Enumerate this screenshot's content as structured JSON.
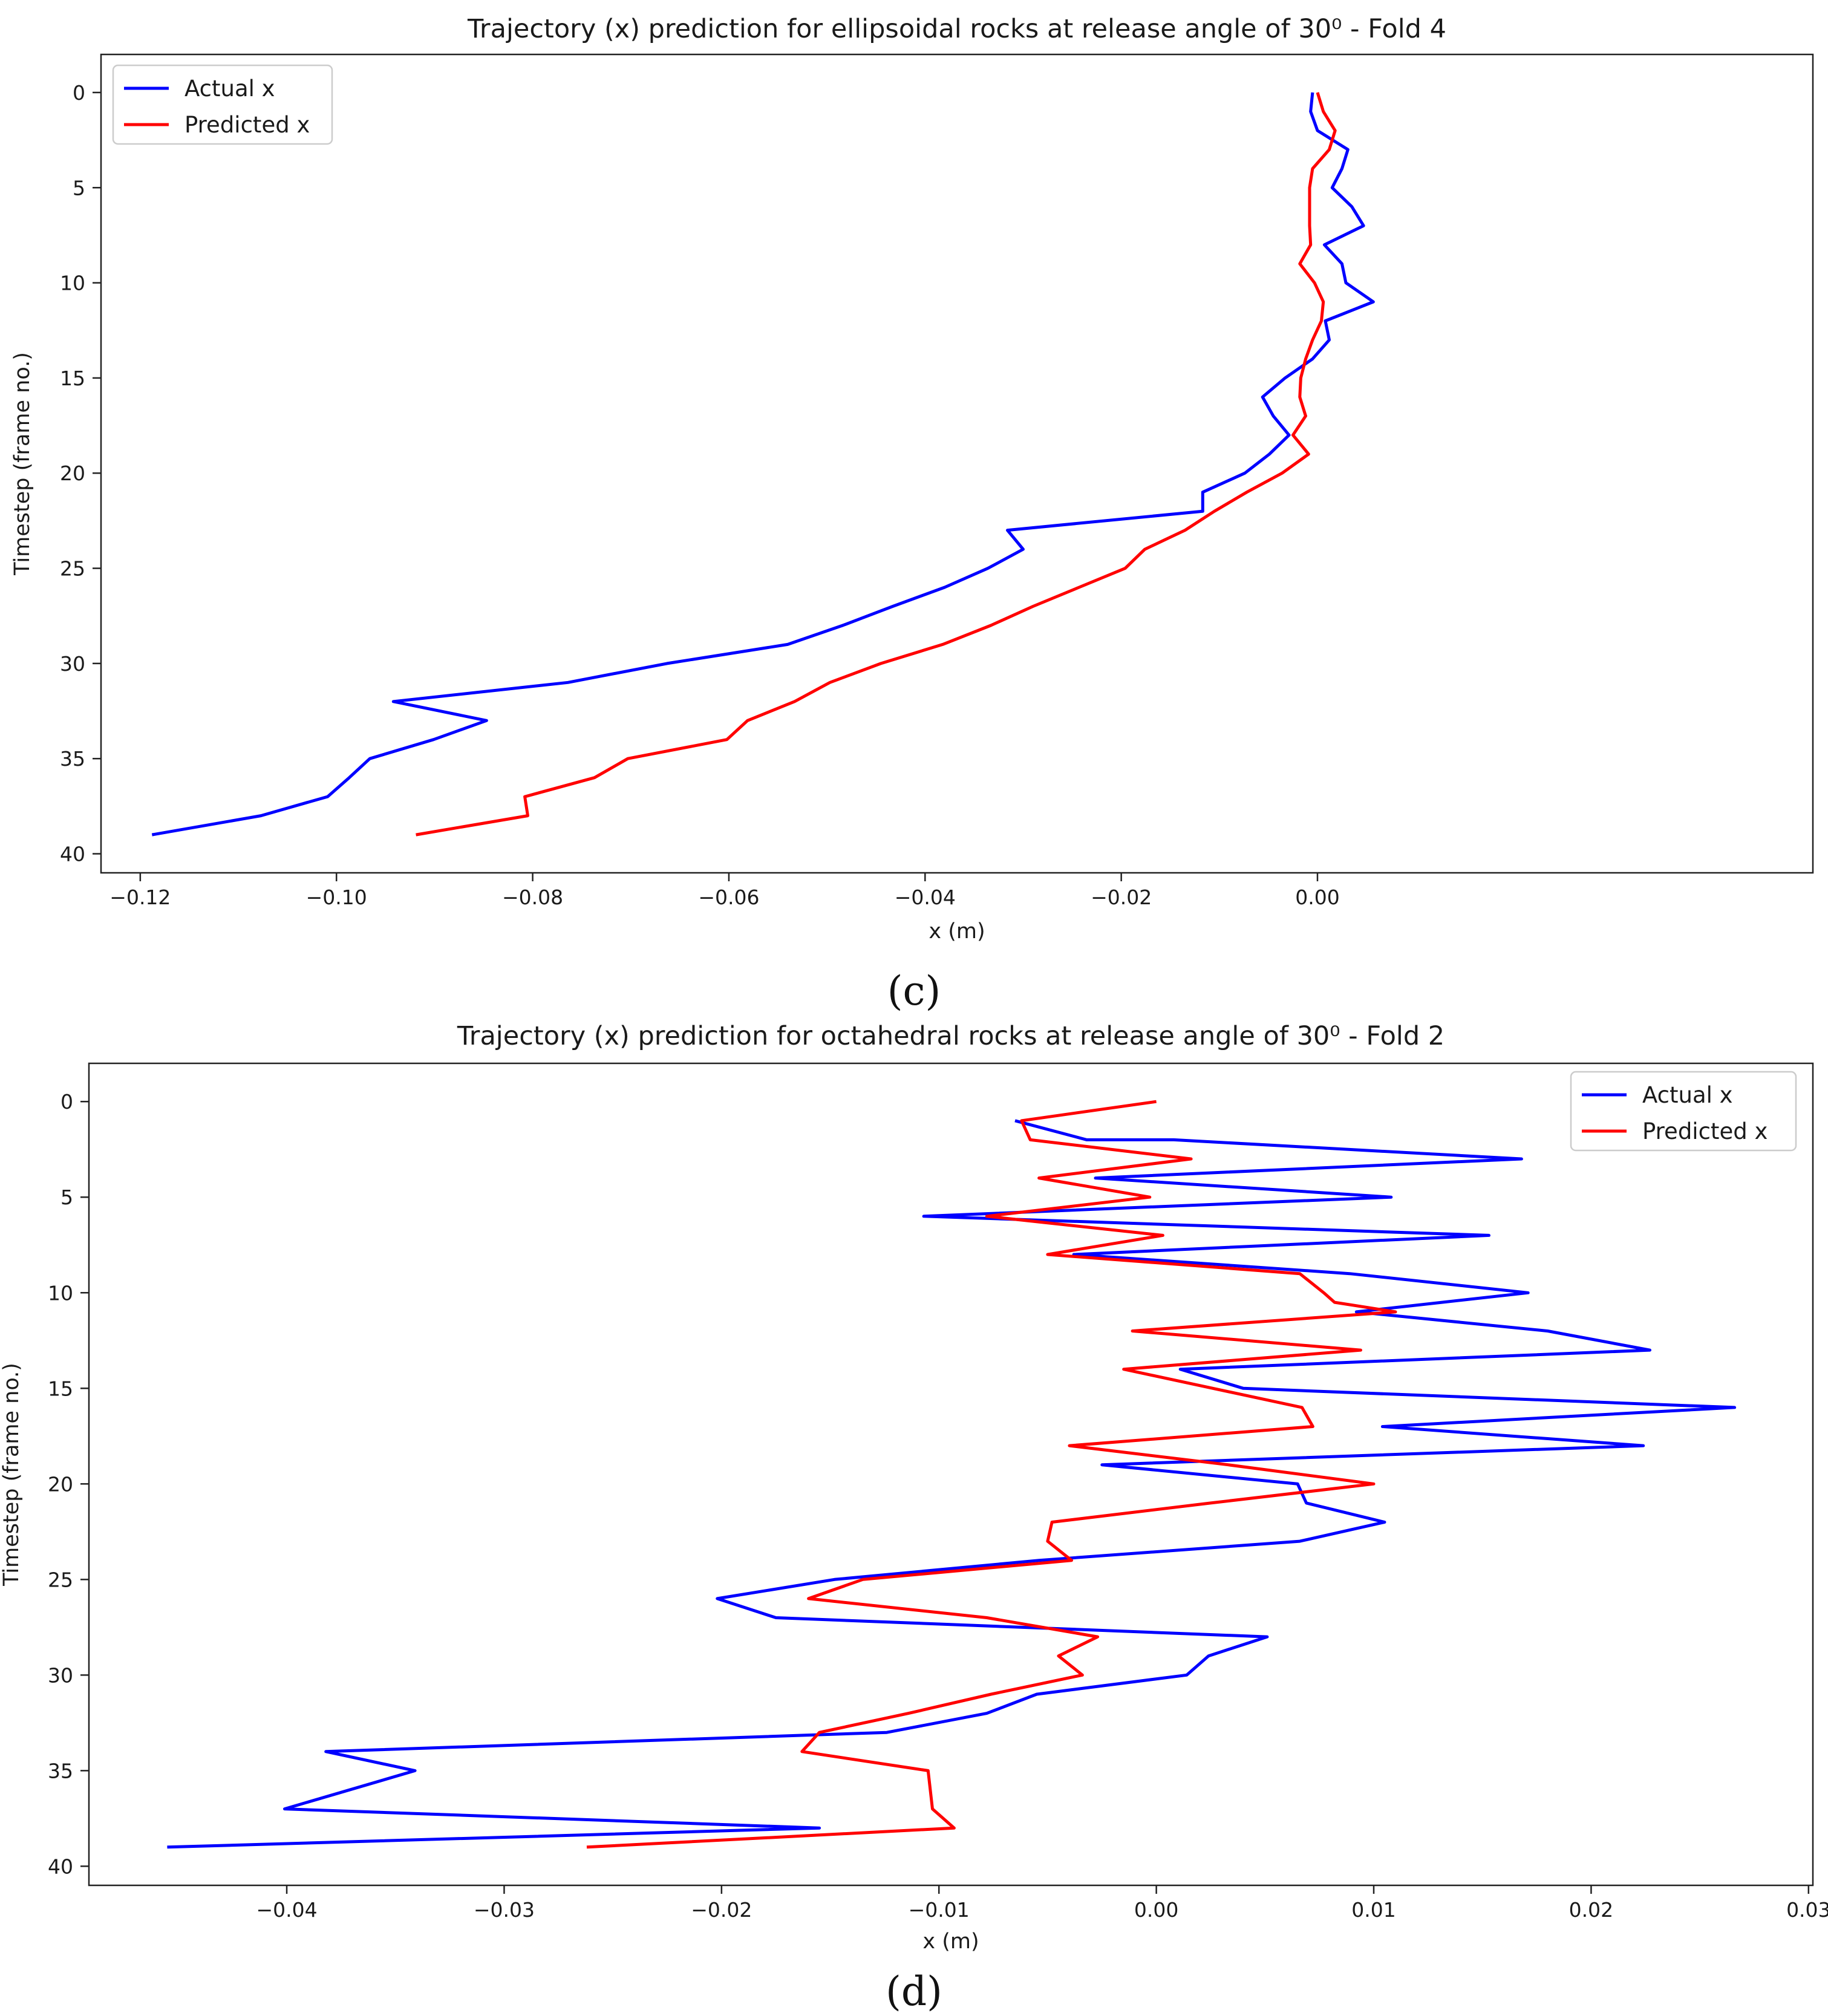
{
  "chart_data": [
    {
      "type": "line",
      "title": "Trajectory (x) prediction for ellipsoidal rocks at release angle of 30⁰ - Fold 4",
      "panel_label": "(c)",
      "xlabel": "x (m)",
      "ylabel": "Timestep (frame no.)",
      "xlim": [
        -0.124,
        0.0505
      ],
      "ylim": [
        41,
        -2
      ],
      "y_inverted": true,
      "x_ticks": [
        -0.12,
        -0.1,
        -0.08,
        -0.06,
        -0.04,
        -0.02,
        0.0
      ],
      "x_tick_labels": [
        "−0.12",
        "−0.10",
        "−0.08",
        "−0.06",
        "−0.04",
        "−0.02",
        "0.00"
      ],
      "y_ticks": [
        0,
        5,
        10,
        15,
        20,
        25,
        30,
        35,
        40
      ],
      "y_tick_labels": [
        "0",
        "5",
        "10",
        "15",
        "20",
        "25",
        "30",
        "35",
        "40"
      ],
      "legend_position": "top-left",
      "grid": false,
      "series": [
        {
          "name": "Actual x",
          "color": "#0000ff",
          "x": [
            -0.0005,
            -0.0007,
            0.0,
            0.0031,
            0.0025,
            0.0015,
            0.0035,
            0.0047,
            0.0007,
            0.0025,
            0.0029,
            0.0057,
            0.0008,
            0.0012,
            -0.0005,
            -0.0033,
            -0.0056,
            -0.0045,
            -0.0029,
            -0.0049,
            -0.0074,
            -0.0117,
            -0.0117,
            -0.0316,
            -0.03,
            -0.0336,
            -0.038,
            -0.0433,
            -0.0484,
            -0.054,
            -0.0663,
            -0.0764,
            -0.0942,
            -0.0847,
            -0.0901,
            -0.0966,
            -0.0987,
            -0.1009,
            -0.1077,
            -0.1188
          ],
          "y": [
            0,
            1,
            2,
            3,
            4,
            5,
            6,
            7,
            8,
            9,
            10,
            11,
            12,
            13,
            14,
            15,
            16,
            17,
            18,
            19,
            20,
            21,
            22,
            23,
            24,
            25,
            26,
            27,
            28,
            29,
            30,
            31,
            32,
            33,
            34,
            35,
            36,
            37,
            38,
            39
          ]
        },
        {
          "name": "Predicted x",
          "color": "#ff0000",
          "x": [
            0.0,
            0.0006,
            0.0018,
            0.0012,
            -0.0005,
            -0.0008,
            -0.0008,
            -0.0008,
            -0.0007,
            -0.0018,
            -0.0003,
            0.0006,
            0.0004,
            -0.0005,
            -0.0012,
            -0.0017,
            -0.0018,
            -0.0012,
            -0.0025,
            -0.0009,
            -0.0036,
            -0.0072,
            -0.0105,
            -0.0135,
            -0.0176,
            -0.0196,
            -0.0243,
            -0.029,
            -0.0333,
            -0.0382,
            -0.0445,
            -0.0497,
            -0.0533,
            -0.0581,
            -0.0602,
            -0.0703,
            -0.0737,
            -0.0808,
            -0.0805,
            -0.0919
          ],
          "y": [
            0,
            1,
            2,
            3,
            4,
            5,
            6,
            7,
            8,
            9,
            10,
            11,
            12,
            13,
            14,
            15,
            16,
            17,
            18,
            19,
            20,
            21,
            22,
            23,
            24,
            25,
            26,
            27,
            28,
            29,
            30,
            31,
            32,
            33,
            34,
            35,
            36,
            37,
            38,
            39
          ]
        }
      ]
    },
    {
      "type": "line",
      "title": "Trajectory (x) prediction for octahedral rocks at release angle of 30⁰ - Fold 2",
      "panel_label": "(d)",
      "xlabel": "x (m)",
      "ylabel": "Timestep (frame no.)",
      "xlim": [
        -0.0491,
        0.0302
      ],
      "ylim": [
        41,
        -2
      ],
      "y_inverted": true,
      "x_ticks": [
        -0.04,
        -0.03,
        -0.02,
        -0.01,
        0.0,
        0.01,
        0.02,
        0.03
      ],
      "x_tick_labels": [
        "−0.04",
        "−0.03",
        "−0.02",
        "−0.01",
        "0.00",
        "0.01",
        "0.02",
        "0.03"
      ],
      "y_ticks": [
        0,
        5,
        10,
        15,
        20,
        25,
        30,
        35,
        40
      ],
      "y_tick_labels": [
        "0",
        "5",
        "10",
        "15",
        "20",
        "25",
        "30",
        "35",
        "40"
      ],
      "legend_position": "top-right",
      "grid": false,
      "series": [
        {
          "name": "Actual x",
          "color": "#0000ff",
          "x": [
            -0.0065,
            -0.0032,
            0.0008,
            0.0168,
            -0.0028,
            0.0108,
            -0.0107,
            0.0153,
            -0.0038,
            0.0089,
            0.0171,
            0.0092,
            0.018,
            0.0227,
            0.0011,
            0.004,
            0.0266,
            0.0104,
            0.0224,
            -0.0025,
            0.0065,
            0.0069,
            0.0105,
            0.0066,
            -0.0054,
            -0.0148,
            -0.0202,
            -0.0175,
            0.0051,
            0.0024,
            0.0014,
            -0.0055,
            -0.0078,
            -0.0124,
            -0.0382,
            -0.0341,
            -0.0401,
            -0.0155,
            -0.0455
          ],
          "y": [
            1,
            2,
            2,
            3,
            4,
            5,
            6,
            7,
            8,
            9,
            10,
            11,
            12,
            13,
            14,
            15,
            16,
            17,
            18,
            19,
            20,
            21,
            22,
            23,
            24,
            25,
            26,
            27,
            28,
            29,
            30,
            31,
            32,
            33,
            34,
            35,
            37,
            38,
            39
          ]
        },
        {
          "name": "Predicted x",
          "color": "#ff0000",
          "x": [
            0.0,
            -0.0062,
            -0.0058,
            0.0016,
            -0.0054,
            -0.0003,
            -0.0078,
            0.0003,
            -0.005,
            0.0066,
            0.0077,
            0.0082,
            0.011,
            -0.0011,
            0.0094,
            -0.0015,
            0.0067,
            0.0072,
            -0.004,
            0.0033,
            0.01,
            0.0025,
            -0.0048,
            -0.005,
            -0.0039,
            -0.0135,
            -0.016,
            -0.0078,
            -0.0027,
            -0.0045,
            -0.0034,
            -0.0076,
            -0.0114,
            -0.0155,
            -0.0163,
            -0.0105,
            -0.0103,
            -0.0093,
            -0.0262
          ],
          "y": [
            0,
            1,
            2,
            3,
            4,
            5,
            6,
            7,
            8,
            9,
            10,
            10.5,
            11,
            12,
            13,
            14,
            16,
            17,
            18,
            19,
            20,
            21,
            22,
            23,
            24,
            25,
            26,
            27,
            28,
            29,
            30,
            31,
            32,
            33,
            34,
            35,
            37,
            38,
            39
          ]
        }
      ]
    }
  ]
}
